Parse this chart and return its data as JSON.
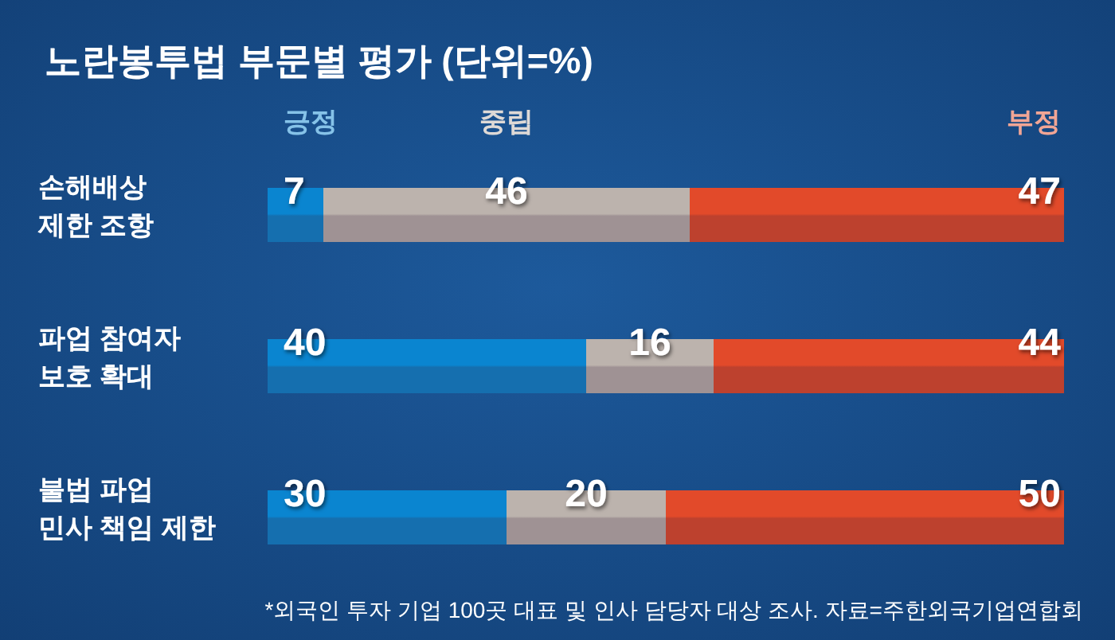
{
  "chart_data": {
    "type": "bar",
    "orientation": "horizontal",
    "stacked": true,
    "title": "노란봉투법 부문별 평가 (단위=%)",
    "categories": [
      "손해배상\n제한 조항",
      "파업 참여자\n보호 확대",
      "불법 파업\n민사 책임 제한"
    ],
    "series": [
      {
        "name": "긍정",
        "color": "#0a85d0",
        "values": [
          7,
          40,
          30
        ]
      },
      {
        "name": "중립",
        "color": "#bcb3ad",
        "values": [
          46,
          16,
          20
        ]
      },
      {
        "name": "부정",
        "color": "#e24a2a",
        "values": [
          47,
          44,
          50
        ]
      }
    ],
    "xlim": [
      0,
      100
    ],
    "data_labels": true,
    "legend": "top",
    "tick_labels": "y",
    "annotations": [
      "*외국인 투자 기업 100곳 대표 및 인사 담당자 대상 조사. 자료=주한외국기업연합회"
    ]
  }
}
